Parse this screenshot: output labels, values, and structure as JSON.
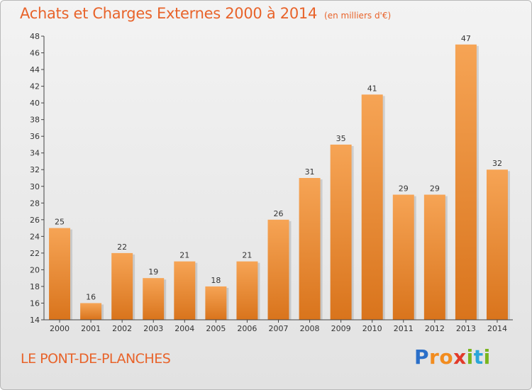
{
  "header": {
    "title": "Achats et Charges Externes 2000 à 2014",
    "subtitle": "(en milliers d'€)"
  },
  "footer": {
    "commune": "LE PONT-DE-PLANCHES",
    "logo": {
      "letters": [
        "P",
        "r",
        "o",
        "x",
        "i",
        "t",
        "i"
      ],
      "colors": [
        "#2a6fc9",
        "#f28c1f",
        "#f28c1f",
        "#e23a2a",
        "#7ab51d",
        "#2aa6d9",
        "#7ab51d"
      ]
    }
  },
  "colors": {
    "accent": "#e8632a",
    "bar_top": "#f6a455",
    "bar_bottom": "#d9741c"
  },
  "chart_data": {
    "type": "bar",
    "title": "Achats et Charges Externes 2000 à 2014",
    "subtitle": "(en milliers d'€)",
    "categories": [
      "2000",
      "2001",
      "2002",
      "2003",
      "2004",
      "2005",
      "2006",
      "2007",
      "2008",
      "2009",
      "2010",
      "2011",
      "2012",
      "2013",
      "2014"
    ],
    "values": [
      25,
      16,
      22,
      19,
      21,
      18,
      21,
      26,
      31,
      35,
      41,
      29,
      29,
      47,
      32
    ],
    "ylim": [
      14,
      48
    ],
    "yticks": [
      14,
      16,
      18,
      20,
      22,
      24,
      26,
      28,
      30,
      32,
      34,
      36,
      38,
      40,
      42,
      44,
      46,
      48
    ],
    "grid": false,
    "legend": "none"
  }
}
